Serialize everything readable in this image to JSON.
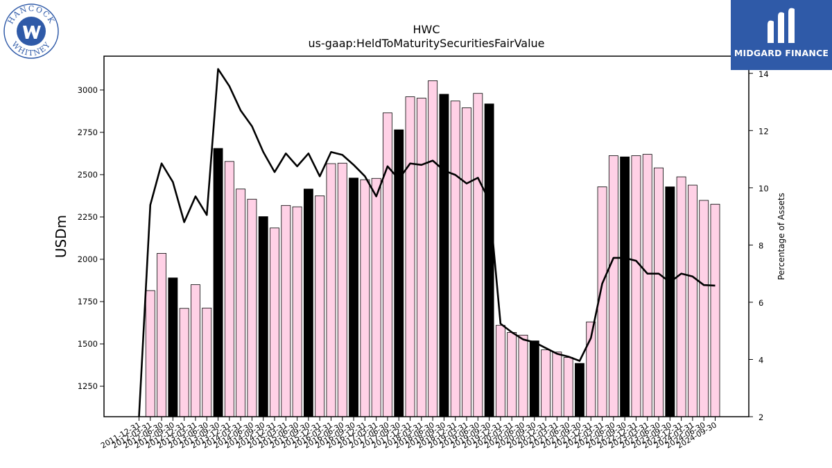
{
  "logos": {
    "left": {
      "text_top": "HANCOCK",
      "text_bottom": "WHITNEY",
      "color": "#2f5aa8"
    },
    "right": {
      "text": "MIDGARD FINANCE",
      "color": "#2f5aa8"
    }
  },
  "chart_data": {
    "type": "bar+line",
    "title": "HWC",
    "subtitle": "us-gaap:HeldToMaturitySecuritiesFairValue",
    "ylabel": "USDm",
    "y2label": "Percentage of Assets",
    "ylim": [
      1070,
      3200
    ],
    "y2lim": [
      2,
      14.6
    ],
    "yticks": [
      1250,
      1500,
      1750,
      2000,
      2250,
      2500,
      2750,
      3000
    ],
    "y2ticks": [
      2,
      4,
      6,
      8,
      10,
      12,
      14
    ],
    "bar_color_default": "#ffd1e6",
    "bar_color_q4": "#000000",
    "line_color": "#000000",
    "categories": [
      "2011-12-31",
      "2012-03-31",
      "2012-06-30",
      "2012-09-30",
      "2012-12-31",
      "2013-03-31",
      "2013-06-30",
      "2013-09-30",
      "2013-12-31",
      "2014-03-31",
      "2014-06-30",
      "2014-09-30",
      "2014-12-31",
      "2015-03-31",
      "2015-06-30",
      "2015-09-30",
      "2015-12-31",
      "2016-03-31",
      "2016-06-30",
      "2016-09-30",
      "2016-12-31",
      "2017-03-31",
      "2017-06-30",
      "2017-09-30",
      "2017-12-31",
      "2018-03-31",
      "2018-06-30",
      "2018-09-30",
      "2018-12-31",
      "2019-03-31",
      "2019-06-30",
      "2019-09-30",
      "2019-12-31",
      "2020-03-31",
      "2020-06-30",
      "2020-09-30",
      "2020-12-31",
      "2021-03-31",
      "2021-06-30",
      "2021-09-30",
      "2021-12-31",
      "2022-03-31",
      "2022-06-30",
      "2022-09-30",
      "2022-12-31",
      "2023-03-31",
      "2023-06-30",
      "2023-09-30",
      "2023-12-31",
      "2024-03-31",
      "2024-06-30",
      "2024-09-30"
    ],
    "xtick_labels": [
      "2011-12-31",
      "2012-03-31",
      "2012-06-30",
      "2012-09-30",
      "2012-12-31",
      "2013-03-31",
      "2013-06-30",
      "2013-09-30",
      "2013-12-31",
      "2014-03-31",
      "2014-06-30",
      "2014-09-30",
      "2014-12-31",
      "2015-03-31",
      "2015-06-30",
      "2015-09-30",
      "2015-12-31",
      "2016-03-31",
      "2016-06-30",
      "2016-09-30",
      "2016-12-31",
      "2017-03-31",
      "2017-06-30",
      "2017-09-30",
      "2017-12-31",
      "2018-03-31",
      "2018-06-30",
      "2018-09-30",
      "2018-12-31",
      "2019-03-31",
      "2019-06-30",
      "2019-09-30",
      "2019-12-31",
      "2020-03-31",
      "2020-06-30",
      "2020-09-30",
      "2020-12-31",
      "2021-03-31",
      "2021-06-30",
      "2021-09-30",
      "2021-12-31",
      "2022-03-31",
      "2022-06-30",
      "2022-09-30",
      "2022-12-31",
      "2023-03-31",
      "2023-06-30",
      "2023-09-30",
      "2023-12-31",
      "2024-03-31",
      "2024-06-30",
      "2024-09-30"
    ],
    "series": [
      {
        "type": "bar",
        "axis": "left",
        "values": [
          null,
          1815,
          2035,
          1890,
          1710,
          1850,
          1712,
          2655,
          2578,
          2415,
          2355,
          2252,
          2185,
          2318,
          2310,
          2415,
          2375,
          2565,
          2568,
          2480,
          2470,
          2478,
          2865,
          2765,
          2960,
          2952,
          3055,
          2975,
          2935,
          2895,
          2980,
          2918,
          1610,
          1568,
          1552,
          1518,
          1465,
          1452,
          1420,
          1385,
          1630,
          2428,
          2612,
          2605,
          2612,
          2620,
          2540,
          2428,
          2487,
          2438,
          2348,
          2325
        ],
        "q4_highlight": [
          false,
          false,
          false,
          true,
          false,
          false,
          false,
          true,
          false,
          false,
          false,
          true,
          false,
          false,
          false,
          true,
          false,
          false,
          false,
          true,
          false,
          false,
          false,
          true,
          false,
          false,
          false,
          true,
          false,
          false,
          false,
          true,
          false,
          false,
          false,
          true,
          false,
          false,
          false,
          true,
          false,
          false,
          false,
          true,
          false,
          false,
          false,
          true,
          false,
          false,
          false,
          false
        ]
      },
      {
        "type": "line",
        "axis": "right",
        "values": [
          1.5,
          9.4,
          10.85,
          10.2,
          8.8,
          9.7,
          9.05,
          14.15,
          13.55,
          12.7,
          12.15,
          11.25,
          10.55,
          11.2,
          10.75,
          11.2,
          10.4,
          11.25,
          11.15,
          10.8,
          10.4,
          9.7,
          10.75,
          10.3,
          10.85,
          10.8,
          10.95,
          10.6,
          10.45,
          10.15,
          10.35,
          9.55,
          5.25,
          4.95,
          4.7,
          4.6,
          4.4,
          4.2,
          4.1,
          3.95,
          4.75,
          6.65,
          7.55,
          7.55,
          7.45,
          7.0,
          7.0,
          6.7,
          7.0,
          6.9,
          6.6,
          6.58
        ]
      }
    ],
    "grid": false,
    "legend": "none"
  }
}
